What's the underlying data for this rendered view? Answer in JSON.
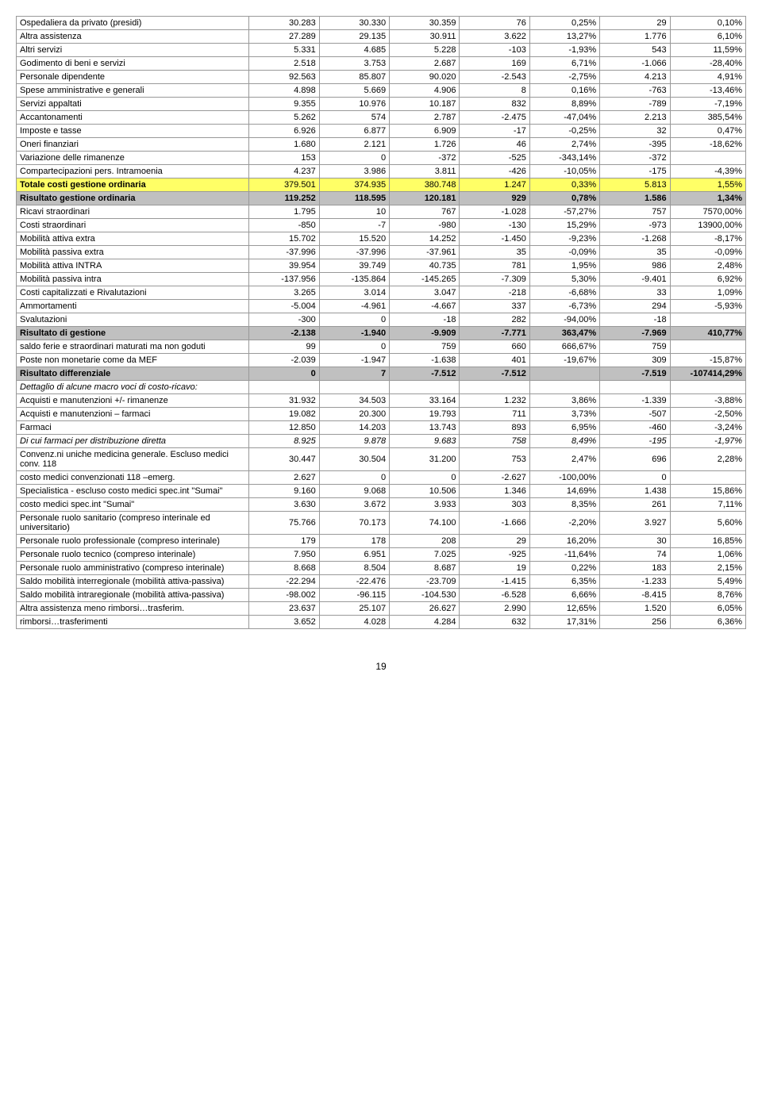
{
  "rows": [
    {
      "label": "Ospedaliera da privato (presidi)",
      "c": [
        "30.283",
        "30.330",
        "30.359",
        "76",
        "0,25%",
        "29",
        "0,10%"
      ]
    },
    {
      "label": "Altra assistenza",
      "c": [
        "27.289",
        "29.135",
        "30.911",
        "3.622",
        "13,27%",
        "1.776",
        "6,10%"
      ]
    },
    {
      "label": "Altri servizi",
      "c": [
        "5.331",
        "4.685",
        "5.228",
        "-103",
        "-1,93%",
        "543",
        "11,59%"
      ]
    },
    {
      "label": "Godimento di beni e servizi",
      "c": [
        "2.518",
        "3.753",
        "2.687",
        "169",
        "6,71%",
        "-1.066",
        "-28,40%"
      ]
    },
    {
      "label": "Personale dipendente",
      "c": [
        "92.563",
        "85.807",
        "90.020",
        "-2.543",
        "-2,75%",
        "4.213",
        "4,91%"
      ]
    },
    {
      "label": "Spese amministrative e generali",
      "c": [
        "4.898",
        "5.669",
        "4.906",
        "8",
        "0,16%",
        "-763",
        "-13,46%"
      ]
    },
    {
      "label": "Servizi appaltati",
      "c": [
        "9.355",
        "10.976",
        "10.187",
        "832",
        "8,89%",
        "-789",
        "-7,19%"
      ]
    },
    {
      "label": "Accantonamenti",
      "c": [
        "5.262",
        "574",
        "2.787",
        "-2.475",
        "-47,04%",
        "2.213",
        "385,54%"
      ]
    },
    {
      "label": "Imposte e tasse",
      "c": [
        "6.926",
        "6.877",
        "6.909",
        "-17",
        "-0,25%",
        "32",
        "0,47%"
      ]
    },
    {
      "label": "Oneri finanziari",
      "c": [
        "1.680",
        "2.121",
        "1.726",
        "46",
        "2,74%",
        "-395",
        "-18,62%"
      ]
    },
    {
      "label": "Variazione delle rimanenze",
      "c": [
        "153",
        "0",
        "-372",
        "-525",
        "-343,14%",
        "-372",
        ""
      ]
    },
    {
      "label": "Compartecipazioni pers. Intramoenia",
      "c": [
        "4.237",
        "3.986",
        "3.811",
        "-426",
        "-10,05%",
        "-175",
        "-4,39%"
      ]
    },
    {
      "label": "Totale costi gestione ordinaria",
      "c": [
        "379.501",
        "374.935",
        "380.748",
        "1.247",
        "0,33%",
        "5.813",
        "1,55%"
      ],
      "style": "yellow"
    },
    {
      "label": "Risultato gestione ordinaria",
      "c": [
        "119.252",
        "118.595",
        "120.181",
        "929",
        "0,78%",
        "1.586",
        "1,34%"
      ],
      "style": "gray"
    },
    {
      "label": "Ricavi straordinari",
      "c": [
        "1.795",
        "10",
        "767",
        "-1.028",
        "-57,27%",
        "757",
        "7570,00%"
      ]
    },
    {
      "label": "Costi straordinari",
      "c": [
        "-850",
        "-7",
        "-980",
        "-130",
        "15,29%",
        "-973",
        "13900,00%"
      ]
    },
    {
      "label": "Mobilità attiva extra",
      "c": [
        "15.702",
        "15.520",
        "14.252",
        "-1.450",
        "-9,23%",
        "-1.268",
        "-8,17%"
      ]
    },
    {
      "label": "Mobilità passiva extra",
      "c": [
        "-37.996",
        "-37.996",
        "-37.961",
        "35",
        "-0,09%",
        "35",
        "-0,09%"
      ]
    },
    {
      "label": "Mobilità attiva INTRA",
      "c": [
        "39.954",
        "39.749",
        "40.735",
        "781",
        "1,95%",
        "986",
        "2,48%"
      ]
    },
    {
      "label": "Mobilità passiva intra",
      "c": [
        "-137.956",
        "-135.864",
        "-145.265",
        "-7.309",
        "5,30%",
        "-9.401",
        "6,92%"
      ]
    },
    {
      "label": "Costi capitalizzati e Rivalutazioni",
      "c": [
        "3.265",
        "3.014",
        "3.047",
        "-218",
        "-6,68%",
        "33",
        "1,09%"
      ]
    },
    {
      "label": "Ammortamenti",
      "c": [
        "-5.004",
        "-4.961",
        "-4.667",
        "337",
        "-6,73%",
        "294",
        "-5,93%"
      ]
    },
    {
      "label": "Svalutazioni",
      "c": [
        "-300",
        "0",
        "-18",
        "282",
        "-94,00%",
        "-18",
        ""
      ]
    },
    {
      "label": "Risultato di gestione",
      "c": [
        "-2.138",
        "-1.940",
        "-9.909",
        "-7.771",
        "363,47%",
        "-7.969",
        "410,77%"
      ],
      "style": "gray"
    },
    {
      "label": "saldo ferie e straordinari maturati ma non goduti",
      "c": [
        "99",
        "0",
        "759",
        "660",
        "666,67%",
        "759",
        ""
      ]
    },
    {
      "label": "Poste non monetarie come da MEF",
      "c": [
        "-2.039",
        "-1.947",
        "-1.638",
        "401",
        "-19,67%",
        "309",
        "-15,87%"
      ]
    },
    {
      "label": "Risultato differenziale",
      "c": [
        "0",
        "7",
        "-7.512",
        "-7.512",
        "",
        "-7.519",
        "-107414,29%"
      ],
      "style": "gray"
    },
    {
      "label": "Dettaglio di alcune macro voci di costo-ricavo:",
      "c": [
        "",
        "",
        "",
        "",
        "",
        "",
        ""
      ],
      "italic": true
    },
    {
      "label": "Acquisti e manutenzioni +/- rimanenze",
      "c": [
        "31.932",
        "34.503",
        "33.164",
        "1.232",
        "3,86%",
        "-1.339",
        "-3,88%"
      ]
    },
    {
      "label": "Acquisti e manutenzioni – farmaci",
      "c": [
        "19.082",
        "20.300",
        "19.793",
        "711",
        "3,73%",
        "-507",
        "-2,50%"
      ]
    },
    {
      "label": "Farmaci",
      "c": [
        "12.850",
        "14.203",
        "13.743",
        "893",
        "6,95%",
        "-460",
        "-3,24%"
      ]
    },
    {
      "label": "Di cui farmaci per distribuzione diretta",
      "c": [
        "8.925",
        "9.878",
        "9.683",
        "758",
        "8,49%",
        "-195",
        "-1,97%"
      ],
      "italic": true
    },
    {
      "label": "Convenz.ni uniche medicina generale. Escluso medici conv. 118",
      "c": [
        "30.447",
        "30.504",
        "31.200",
        "753",
        "2,47%",
        "696",
        "2,28%"
      ]
    },
    {
      "label": "costo medici convenzionati 118 –emerg.",
      "c": [
        "2.627",
        "0",
        "0",
        "-2.627",
        "-100,00%",
        "0",
        ""
      ]
    },
    {
      "label": "Specialistica - escluso costo medici spec.int \"Sumai\"",
      "c": [
        "9.160",
        "9.068",
        "10.506",
        "1.346",
        "14,69%",
        "1.438",
        "15,86%"
      ]
    },
    {
      "label": "costo medici spec.int \"Sumai\"",
      "c": [
        "3.630",
        "3.672",
        "3.933",
        "303",
        "8,35%",
        "261",
        "7,11%"
      ]
    },
    {
      "label": "Personale ruolo sanitario (compreso interinale ed universitario)",
      "c": [
        "75.766",
        "70.173",
        "74.100",
        "-1.666",
        "-2,20%",
        "3.927",
        "5,60%"
      ]
    },
    {
      "label": "Personale ruolo professionale (compreso interinale)",
      "c": [
        "179",
        "178",
        "208",
        "29",
        "16,20%",
        "30",
        "16,85%"
      ]
    },
    {
      "label": "Personale ruolo tecnico  (compreso interinale)",
      "c": [
        "7.950",
        "6.951",
        "7.025",
        "-925",
        "-11,64%",
        "74",
        "1,06%"
      ]
    },
    {
      "label": "Personale ruolo amministrativo (compreso interinale)",
      "c": [
        "8.668",
        "8.504",
        "8.687",
        "19",
        "0,22%",
        "183",
        "2,15%"
      ]
    },
    {
      "label": "Saldo mobilità interregionale (mobilità attiva-passiva)",
      "c": [
        "-22.294",
        "-22.476",
        "-23.709",
        "-1.415",
        "6,35%",
        "-1.233",
        "5,49%"
      ]
    },
    {
      "label": "Saldo mobilità intraregionale (mobilità attiva-passiva)",
      "c": [
        "-98.002",
        "-96.115",
        "-104.530",
        "-6.528",
        "6,66%",
        "-8.415",
        "8,76%"
      ]
    },
    {
      "label": "Altra assistenza meno rimborsi…trasferim.",
      "c": [
        "23.637",
        "25.107",
        "26.627",
        "2.990",
        "12,65%",
        "1.520",
        "6,05%"
      ]
    },
    {
      "label": "rimborsi…trasferimenti",
      "c": [
        "3.652",
        "4.028",
        "4.284",
        "632",
        "17,31%",
        "256",
        "6,36%"
      ]
    }
  ],
  "pageNum": "19",
  "colors": {
    "yellow": "#ffff66",
    "gray": "#c0c0c0",
    "border": "#999999",
    "bg": "#ffffff"
  }
}
